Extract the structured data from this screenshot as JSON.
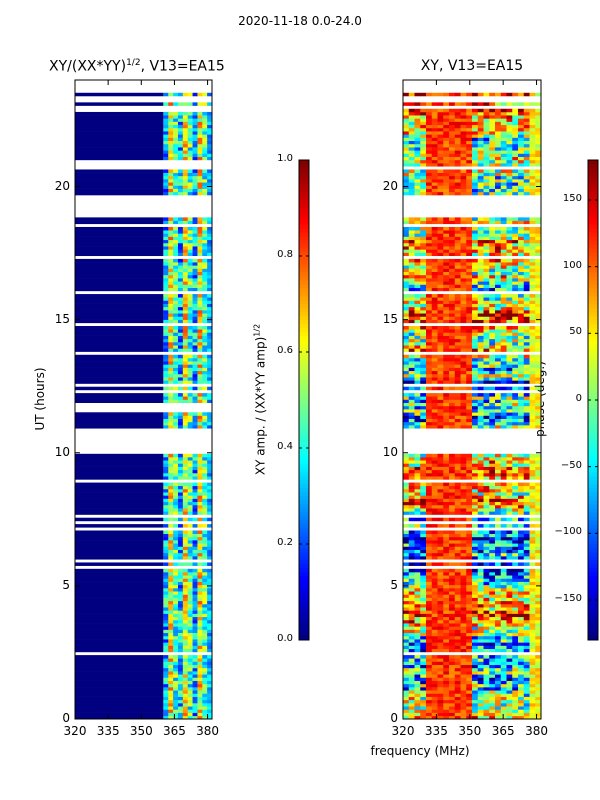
{
  "chart_data": [
    {
      "type": "heatmap",
      "title": "XY/(XX*YY)^(1/2), V13=EA15",
      "title_parts": {
        "main": "XY/(XX*YY)",
        "sup": "1/2",
        "rest": ", V13=EA15"
      },
      "xlabel": "",
      "ylabel": "UT (hours)",
      "xlim": [
        320,
        382
      ],
      "ylim": [
        0,
        24
      ],
      "xticks": [
        320,
        335,
        350,
        365,
        380
      ],
      "yticks": [
        0,
        5,
        10,
        15,
        20
      ],
      "colorbar": {
        "label": "XY amp. / (XX*YY amp)^(1/2)",
        "label_parts": {
          "main": "XY amp. / (XX*YY amp)",
          "sup": "1/2"
        },
        "range": [
          0.0,
          1.0
        ],
        "ticks": [
          "0.0",
          "0.2",
          "0.4",
          "0.6",
          "0.8",
          "1.0"
        ],
        "tick_values": [
          0.0,
          0.2,
          0.4,
          0.6,
          0.8,
          1.0
        ],
        "colormap": "jet"
      },
      "flagged_hour_ranges": [
        [
          10.0,
          10.9
        ],
        [
          11.55,
          11.85
        ],
        [
          18.85,
          19.4
        ],
        [
          20.75,
          20.95
        ],
        [
          22.85,
          23.1
        ]
      ],
      "active_freq_range_mhz": [
        360,
        382
      ],
      "low_band_value": 0.0
    },
    {
      "type": "heatmap",
      "title": "XY, V13=EA15",
      "xlabel": "frequency (MHz)",
      "ylabel": "",
      "xlim": [
        320,
        382
      ],
      "ylim": [
        0,
        24
      ],
      "xticks": [
        320,
        335,
        350,
        365,
        380
      ],
      "yticks": [
        0,
        5,
        10,
        15,
        20
      ],
      "colorbar": {
        "label": "phase (deg.)",
        "range": [
          -180,
          180
        ],
        "ticks": [
          "−150",
          "−100",
          "−50",
          "0",
          "50",
          "100",
          "150"
        ],
        "tick_values": [
          -150,
          -100,
          -50,
          0,
          50,
          100,
          150
        ],
        "colormap": "jet"
      },
      "flagged_hour_ranges": [
        [
          10.0,
          10.9
        ],
        [
          18.85,
          19.4
        ]
      ]
    }
  ],
  "figure": {
    "suptitle": "2020-11-18 0.0-24.0"
  },
  "colors": {
    "jet_dark_blue": "#00007f",
    "jet_blue": "#0000ff",
    "jet_cyan": "#00ffff",
    "jet_yellow": "#ffff00",
    "jet_red": "#ff0000",
    "jet_dark_red": "#7f0000"
  }
}
